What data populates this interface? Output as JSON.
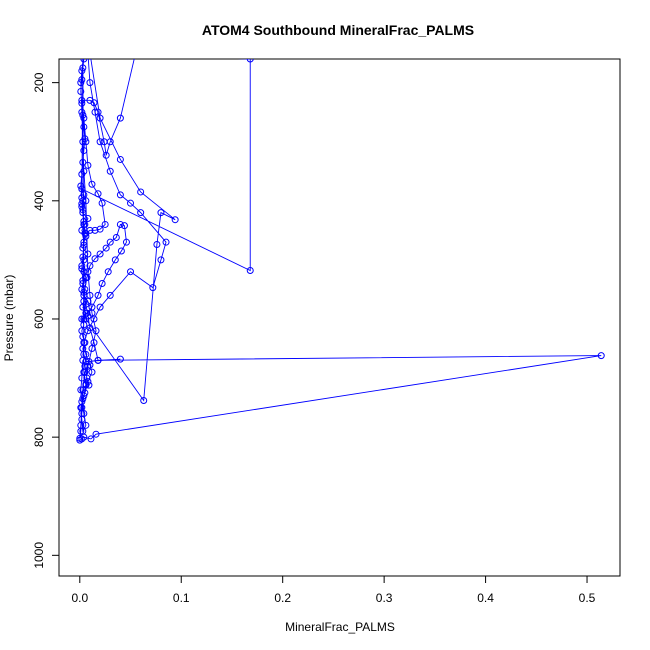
{
  "chart_data": {
    "type": "scatter",
    "title": "ATOM4 Southbound MineralFrac_PALMS",
    "xlabel": "MineralFrac_PALMS",
    "ylabel": "Pressure (mbar)",
    "xlim": [
      -0.0205,
      0.5325
    ],
    "ylim": [
      1035,
      160
    ],
    "y_reversed": true,
    "x_ticks": [
      0.0,
      0.1,
      0.2,
      0.3,
      0.4,
      0.5
    ],
    "x_tick_labels": [
      "0.0",
      "0.1",
      "0.2",
      "0.3",
      "0.4",
      "0.5"
    ],
    "y_ticks": [
      200,
      400,
      600,
      800,
      1000
    ],
    "y_tick_labels": [
      "200",
      "400",
      "600",
      "800",
      "1000"
    ],
    "grid": false,
    "legend": "none",
    "series_color": "#0000ff",
    "marker": "open-circle",
    "connected": true,
    "points": [
      [
        0.0,
        805
      ],
      [
        0.002,
        803
      ],
      [
        0.004,
        800
      ],
      [
        0.011,
        803
      ],
      [
        0.016,
        795
      ],
      [
        0.514,
        662
      ],
      [
        0.018,
        670
      ],
      [
        0.04,
        668
      ],
      [
        0.006,
        672
      ],
      [
        0.004,
        660
      ],
      [
        0.003,
        650
      ],
      [
        0.005,
        640
      ],
      [
        0.003,
        630
      ],
      [
        0.002,
        620
      ],
      [
        0.004,
        610
      ],
      [
        0.002,
        600
      ],
      [
        0.006,
        590
      ],
      [
        0.003,
        580
      ],
      [
        0.008,
        570
      ],
      [
        0.004,
        560
      ],
      [
        0.002,
        550
      ],
      [
        0.003,
        540
      ],
      [
        0.006,
        530
      ],
      [
        0.004,
        520
      ],
      [
        0.002,
        510
      ],
      [
        0.004,
        500
      ],
      [
        0.008,
        490
      ],
      [
        0.003,
        480
      ],
      [
        0.004,
        470
      ],
      [
        0.006,
        460
      ],
      [
        0.002,
        450
      ],
      [
        0.005,
        440
      ],
      [
        0.008,
        430
      ],
      [
        0.003,
        420
      ],
      [
        0.002,
        410
      ],
      [
        0.003,
        400
      ],
      [
        0.004,
        390
      ],
      [
        0.002,
        380
      ],
      [
        0.168,
        518
      ],
      [
        0.168,
        160
      ],
      [
        0.003,
        150
      ],
      [
        0.004,
        600
      ],
      [
        0.007,
        590
      ],
      [
        0.012,
        580
      ],
      [
        0.018,
        560
      ],
      [
        0.022,
        540
      ],
      [
        0.028,
        520
      ],
      [
        0.035,
        500
      ],
      [
        0.041,
        485
      ],
      [
        0.046,
        470
      ],
      [
        0.044,
        442
      ],
      [
        0.04,
        440
      ],
      [
        0.036,
        462
      ],
      [
        0.03,
        470
      ],
      [
        0.026,
        480
      ],
      [
        0.02,
        490
      ],
      [
        0.015,
        498
      ],
      [
        0.01,
        510
      ],
      [
        0.007,
        530
      ],
      [
        0.005,
        550
      ],
      [
        0.004,
        570
      ],
      [
        0.006,
        600
      ],
      [
        0.063,
        738
      ],
      [
        0.076,
        474
      ],
      [
        0.08,
        420
      ],
      [
        0.094,
        432
      ],
      [
        0.06,
        385
      ],
      [
        0.04,
        330
      ],
      [
        0.02,
        260
      ],
      [
        0.01,
        150
      ],
      [
        0.003,
        150
      ],
      [
        0.004,
        690
      ],
      [
        0.006,
        712
      ],
      [
        0.009,
        712
      ],
      [
        0.007,
        700
      ],
      [
        0.005,
        680
      ],
      [
        0.003,
        670
      ],
      [
        0.002,
        700
      ],
      [
        0.001,
        720
      ],
      [
        0.002,
        740
      ],
      [
        0.004,
        760
      ],
      [
        0.006,
        780
      ],
      [
        0.003,
        790
      ],
      [
        0.002,
        770
      ],
      [
        0.001,
        750
      ],
      [
        0.003,
        735
      ],
      [
        0.005,
        725
      ],
      [
        0.008,
        706
      ],
      [
        0.012,
        690
      ],
      [
        0.01,
        678
      ],
      [
        0.006,
        660
      ],
      [
        0.004,
        640
      ],
      [
        0.008,
        620
      ],
      [
        0.014,
        600
      ],
      [
        0.02,
        580
      ],
      [
        0.03,
        560
      ],
      [
        0.05,
        520
      ],
      [
        0.072,
        547
      ],
      [
        0.08,
        500
      ],
      [
        0.085,
        470
      ],
      [
        0.06,
        420
      ],
      [
        0.05,
        404
      ],
      [
        0.04,
        390
      ],
      [
        0.03,
        350
      ],
      [
        0.02,
        300
      ],
      [
        0.015,
        250
      ],
      [
        0.01,
        200
      ],
      [
        0.008,
        150
      ],
      [
        0.003,
        150
      ],
      [
        0.002,
        405
      ],
      [
        0.004,
        440
      ],
      [
        0.006,
        455
      ],
      [
        0.01,
        450
      ],
      [
        0.015,
        450
      ],
      [
        0.02,
        448
      ],
      [
        0.025,
        440
      ],
      [
        0.022,
        404
      ],
      [
        0.018,
        388
      ],
      [
        0.012,
        372
      ],
      [
        0.008,
        340
      ],
      [
        0.006,
        300
      ],
      [
        0.004,
        260
      ],
      [
        0.002,
        230
      ],
      [
        0.01,
        230
      ],
      [
        0.014,
        234
      ],
      [
        0.018,
        250
      ],
      [
        0.024,
        300
      ],
      [
        0.026,
        323
      ],
      [
        0.03,
        300
      ],
      [
        0.04,
        260
      ],
      [
        0.055,
        150
      ],
      [
        0.004,
        150
      ],
      [
        0.002,
        180
      ],
      [
        0.001,
        200
      ],
      [
        0.002,
        250
      ],
      [
        0.003,
        300
      ],
      [
        0.004,
        350
      ],
      [
        0.006,
        400
      ],
      [
        0.008,
        520
      ],
      [
        0.01,
        560
      ],
      [
        0.012,
        590
      ],
      [
        0.016,
        620
      ],
      [
        0.012,
        650
      ],
      [
        0.008,
        680
      ],
      [
        0.006,
        710
      ],
      [
        0.004,
        730
      ],
      [
        0.002,
        760
      ],
      [
        0.001,
        790
      ],
      [
        0.0,
        802
      ],
      [
        0.001,
        780
      ],
      [
        0.002,
        750
      ],
      [
        0.003,
        720
      ],
      [
        0.005,
        690
      ],
      [
        0.009,
        672
      ],
      [
        0.018,
        670
      ],
      [
        0.014,
        640
      ],
      [
        0.01,
        615
      ],
      [
        0.008,
        595
      ],
      [
        0.006,
        575
      ],
      [
        0.004,
        555
      ],
      [
        0.003,
        535
      ],
      [
        0.002,
        515
      ],
      [
        0.003,
        495
      ],
      [
        0.004,
        475
      ],
      [
        0.005,
        455
      ],
      [
        0.004,
        435
      ],
      [
        0.003,
        415
      ],
      [
        0.002,
        395
      ],
      [
        0.001,
        375
      ],
      [
        0.002,
        355
      ],
      [
        0.003,
        335
      ],
      [
        0.004,
        315
      ],
      [
        0.005,
        295
      ],
      [
        0.004,
        275
      ],
      [
        0.003,
        255
      ],
      [
        0.002,
        235
      ],
      [
        0.001,
        215
      ],
      [
        0.002,
        195
      ],
      [
        0.003,
        175
      ],
      [
        0.004,
        160
      ]
    ]
  }
}
